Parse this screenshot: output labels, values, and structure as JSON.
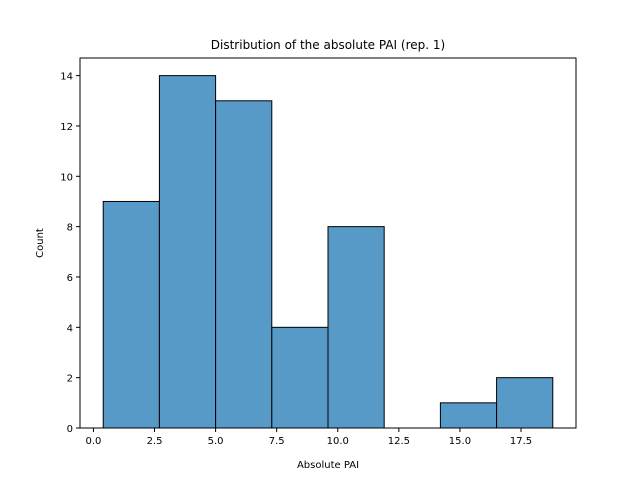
{
  "chart_data": {
    "type": "bar",
    "title": "Distribution of the absolute PAI (rep. 1)",
    "xlabel": "Absolute PAI",
    "ylabel": "Count",
    "bin_edges": [
      0.4,
      2.7,
      5.0,
      7.3,
      9.6,
      11.9,
      14.2,
      16.5,
      18.8
    ],
    "counts": [
      9,
      14,
      13,
      4,
      8,
      0,
      1,
      2
    ],
    "xlim": [
      -0.55,
      19.75
    ],
    "ylim": [
      0,
      14.7
    ],
    "xticks": [
      0.0,
      2.5,
      5.0,
      7.5,
      10.0,
      12.5,
      15.0,
      17.5
    ],
    "xtick_labels": [
      "0.0",
      "2.5",
      "5.0",
      "7.5",
      "10.0",
      "12.5",
      "15.0",
      "17.5"
    ],
    "yticks": [
      0,
      2,
      4,
      6,
      8,
      10,
      12,
      14
    ],
    "ytick_labels": [
      "0",
      "2",
      "4",
      "6",
      "8",
      "10",
      "12",
      "14"
    ],
    "grid": false,
    "bar_color": "#5799c7",
    "edge_color": "#000000"
  }
}
